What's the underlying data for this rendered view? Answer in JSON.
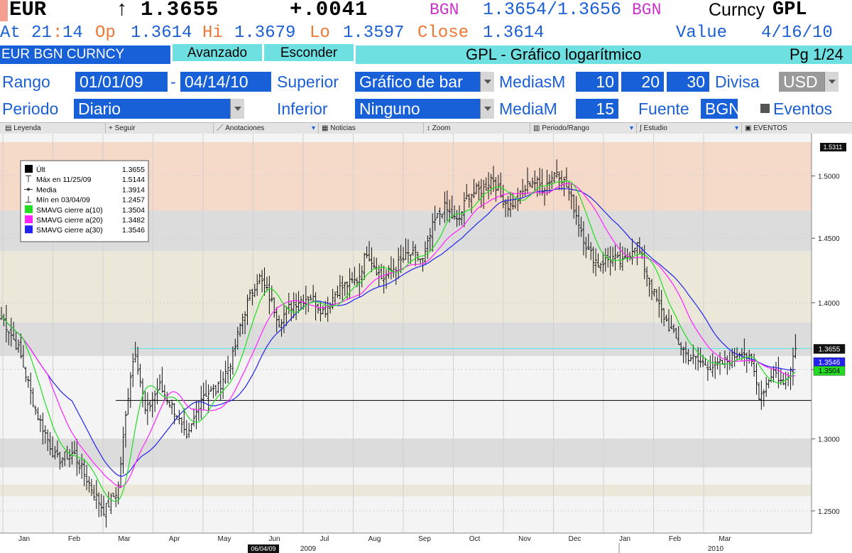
{
  "header": {
    "ticker": "EUR",
    "arrow": "↑",
    "last_price": "1.3655",
    "change": "+.0041",
    "source1": "BGN",
    "bid_ask": "1.3654/1.3656",
    "source2": "BGN",
    "function_prefix": "Curncy",
    "function": "GPL"
  },
  "quote": {
    "at_label": "At",
    "time_hh": "21",
    "time_mm": "14",
    "op_label": "Op",
    "op": "1.3614",
    "hi_label": "Hi",
    "hi": "1.3679",
    "lo_label": "Lo",
    "lo": "1.3597",
    "close_label": "Close",
    "close": "1.3614",
    "value_label": "Value",
    "value_date": "4/16/10"
  },
  "bar": {
    "security": "EUR BGN CURNCY",
    "avanzado": "Avanzado",
    "esconder": "Esconder",
    "chart_title": "GPL - Gráfico logarítmico",
    "page": "Pg 1/24"
  },
  "form": {
    "rango_label": "Rango",
    "rango_start": "01/01/09",
    "rango_sep": "-",
    "rango_end": "04/14/10",
    "superior_label": "Superior",
    "superior_value": "Gráfico de bar",
    "mediasm_label": "MediasM",
    "ma1": "10",
    "ma2": "20",
    "ma3": "30",
    "divisa_label": "Divisa",
    "divisa_value": "USD",
    "periodo_label": "Periodo",
    "periodo_value": "Diario",
    "inferior_label": "Inferior",
    "inferior_value": "Ninguno",
    "mediam_label": "MediaM",
    "mediam_value": "15",
    "fuente_label": "Fuente",
    "fuente_value": "BGN",
    "eventos_label": "Eventos"
  },
  "toolbar": {
    "leyenda": "Leyenda",
    "seguir": "Seguir",
    "anotaciones": "Anotaciones",
    "noticias": "Noticias",
    "zoom": "Zoom",
    "periodo_rango": "Periodo/Rango",
    "estudio": "Estudio",
    "eventos": "EVENTOS"
  },
  "colors": {
    "accent_blue": "#1860d8",
    "ma10": "#22dd22",
    "ma20": "#ff22ff",
    "ma30": "#2222ee",
    "last_line": "#55e8e8",
    "band_peach": "#f5d9c9",
    "band_grey": "#dcdcdc",
    "band_beige": "#ebe8da"
  },
  "chart_data": {
    "type": "bar",
    "scale": "log",
    "ylim": [
      1.235,
      1.535
    ],
    "yticks": [
      "1.2500",
      "1.3000",
      "1.3500",
      "1.4000",
      "1.4500",
      "1.5000"
    ],
    "months": [
      "Jan",
      "Feb",
      "Mar",
      "Apr",
      "May",
      "Jun",
      "Jul",
      "Aug",
      "Sep",
      "Oct",
      "Nov",
      "Dec",
      "Jan",
      "Feb",
      "Mar"
    ],
    "years": [
      "2009",
      "2010"
    ],
    "cursor_date": "06/04/09",
    "top_tag": "1.5311",
    "legend": [
      {
        "label": "Últ",
        "value": "1.3655"
      },
      {
        "label": "Máx en 11/25/09",
        "value": "1.5144"
      },
      {
        "label": "Media",
        "value": "1.3914"
      },
      {
        "label": "Mín en 03/04/09",
        "value": "1.2457"
      },
      {
        "label": "SMAVG cierre a(10)",
        "value": "1.3504"
      },
      {
        "label": "SMAVG cierre a(20)",
        "value": "1.3482"
      },
      {
        "label": "SMAVG cierre a(30)",
        "value": "1.3546"
      }
    ],
    "last": 1.3655,
    "low_line": 1.3275,
    "tags": [
      {
        "label": "1.3655",
        "value": 1.3655
      },
      {
        "label": "1.3546",
        "value": 1.3546
      },
      {
        "label": "1.3504",
        "value": 1.3504
      }
    ],
    "bands": [
      {
        "from": 1.472,
        "to": 1.528,
        "color": "peach"
      },
      {
        "from": 1.44,
        "to": 1.472,
        "color": "grey"
      },
      {
        "from": 1.415,
        "to": 1.44,
        "color": "beige"
      },
      {
        "from": 1.385,
        "to": 1.415,
        "color": "beige"
      },
      {
        "from": 1.36,
        "to": 1.385,
        "color": "grey"
      },
      {
        "from": 1.28,
        "to": 1.3,
        "color": "grey"
      },
      {
        "from": 1.26,
        "to": 1.268,
        "color": "beige"
      }
    ],
    "key_closes": [
      {
        "t": 0.0,
        "v": 1.39
      },
      {
        "t": 0.5,
        "v": 1.365
      },
      {
        "t": 1.0,
        "v": 1.32
      },
      {
        "t": 1.6,
        "v": 1.285
      },
      {
        "t": 2.1,
        "v": 1.29
      },
      {
        "t": 2.7,
        "v": 1.262
      },
      {
        "t": 3.0,
        "v": 1.25
      },
      {
        "t": 3.4,
        "v": 1.265
      },
      {
        "t": 3.75,
        "v": 1.345
      },
      {
        "t": 3.9,
        "v": 1.365
      },
      {
        "t": 4.2,
        "v": 1.318
      },
      {
        "t": 4.6,
        "v": 1.338
      },
      {
        "t": 5.1,
        "v": 1.318
      },
      {
        "t": 5.4,
        "v": 1.298
      },
      {
        "t": 5.85,
        "v": 1.332
      },
      {
        "t": 6.3,
        "v": 1.335
      },
      {
        "t": 6.75,
        "v": 1.36
      },
      {
        "t": 7.0,
        "v": 1.387
      },
      {
        "t": 7.35,
        "v": 1.412
      },
      {
        "t": 7.5,
        "v": 1.42
      },
      {
        "t": 7.75,
        "v": 1.408
      },
      {
        "t": 8.1,
        "v": 1.386
      },
      {
        "t": 8.5,
        "v": 1.4
      },
      {
        "t": 9.0,
        "v": 1.405
      },
      {
        "t": 9.4,
        "v": 1.393
      },
      {
        "t": 9.8,
        "v": 1.41
      },
      {
        "t": 10.4,
        "v": 1.418
      },
      {
        "t": 10.65,
        "v": 1.44
      },
      {
        "t": 11.1,
        "v": 1.418
      },
      {
        "t": 11.5,
        "v": 1.428
      },
      {
        "t": 11.9,
        "v": 1.438
      },
      {
        "t": 12.3,
        "v": 1.432
      },
      {
        "t": 12.6,
        "v": 1.462
      },
      {
        "t": 12.9,
        "v": 1.475
      },
      {
        "t": 13.3,
        "v": 1.462
      },
      {
        "t": 13.6,
        "v": 1.485
      },
      {
        "t": 14.1,
        "v": 1.49
      },
      {
        "t": 14.3,
        "v": 1.5
      },
      {
        "t": 14.55,
        "v": 1.484
      },
      {
        "t": 14.8,
        "v": 1.475
      },
      {
        "t": 15.1,
        "v": 1.483
      },
      {
        "t": 15.45,
        "v": 1.497
      },
      {
        "t": 15.8,
        "v": 1.49
      },
      {
        "t": 16.2,
        "v": 1.505
      },
      {
        "t": 16.5,
        "v": 1.49
      },
      {
        "t": 16.8,
        "v": 1.465
      },
      {
        "t": 17.1,
        "v": 1.44
      },
      {
        "t": 17.4,
        "v": 1.43
      },
      {
        "t": 17.8,
        "v": 1.435
      },
      {
        "t": 18.1,
        "v": 1.43
      },
      {
        "t": 18.5,
        "v": 1.447
      },
      {
        "t": 18.9,
        "v": 1.415
      },
      {
        "t": 19.2,
        "v": 1.395
      },
      {
        "t": 19.6,
        "v": 1.375
      },
      {
        "t": 20.0,
        "v": 1.36
      },
      {
        "t": 20.4,
        "v": 1.355
      },
      {
        "t": 20.8,
        "v": 1.352
      },
      {
        "t": 21.2,
        "v": 1.357
      },
      {
        "t": 21.6,
        "v": 1.365
      },
      {
        "t": 21.9,
        "v": 1.352
      },
      {
        "t": 22.1,
        "v": 1.33
      },
      {
        "t": 22.5,
        "v": 1.35
      },
      {
        "t": 22.8,
        "v": 1.338
      },
      {
        "t": 23.1,
        "v": 1.362
      },
      {
        "t": 23.2,
        "v": 1.3655
      }
    ]
  }
}
